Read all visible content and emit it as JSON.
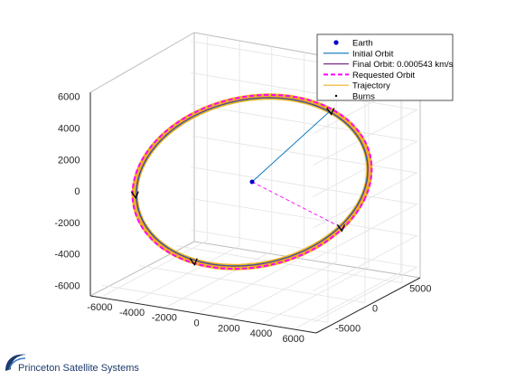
{
  "chart_data": {
    "type": "line3d",
    "title": "",
    "xlabel": "",
    "ylabel": "",
    "zlabel": "",
    "xlim": [
      -7000,
      7000
    ],
    "ylim": [
      -7000,
      7000
    ],
    "zlim": [
      -6500,
      6500
    ],
    "x_ticks": [
      "-6000",
      "-4000",
      "-2000",
      "0",
      "2000",
      "4000",
      "6000"
    ],
    "y_ticks": [
      "-5000",
      "0",
      "5000"
    ],
    "z_ticks": [
      "6000",
      "4000",
      "2000",
      "0",
      "-2000",
      "-4000",
      "-6000"
    ],
    "grid": true,
    "legend_position": "top-right",
    "series": [
      {
        "name": "Earth",
        "color": "#0000cc",
        "x": [
          0
        ],
        "y": [
          0
        ],
        "z": [
          0
        ]
      },
      {
        "name": "Initial Orbit",
        "color": "#0072bd"
      },
      {
        "name": "Final Orbit: 0.000543 km/s",
        "color": "#7e2f8e"
      },
      {
        "name": "Requested Orbit",
        "color": "#ff00ff"
      },
      {
        "name": "Trajectory",
        "color": "#edb120"
      },
      {
        "name": "Burns",
        "color": "#000000"
      }
    ]
  },
  "legend": [
    {
      "label": "Earth",
      "color": "#0000cc",
      "marker": "dot"
    },
    {
      "label": "Initial Orbit",
      "color": "#0072bd",
      "marker": "line"
    },
    {
      "label": "Final Orbit: 0.000543 km/s",
      "color": "#7e2f8e",
      "marker": "line"
    },
    {
      "label": "Requested Orbit",
      "color": "#ff00ff",
      "marker": "dash"
    },
    {
      "label": "Trajectory",
      "color": "#edb120",
      "marker": "line"
    },
    {
      "label": "Burns",
      "color": "#000000",
      "marker": "point"
    }
  ],
  "logo": {
    "text": "Princeton Satellite Systems"
  }
}
